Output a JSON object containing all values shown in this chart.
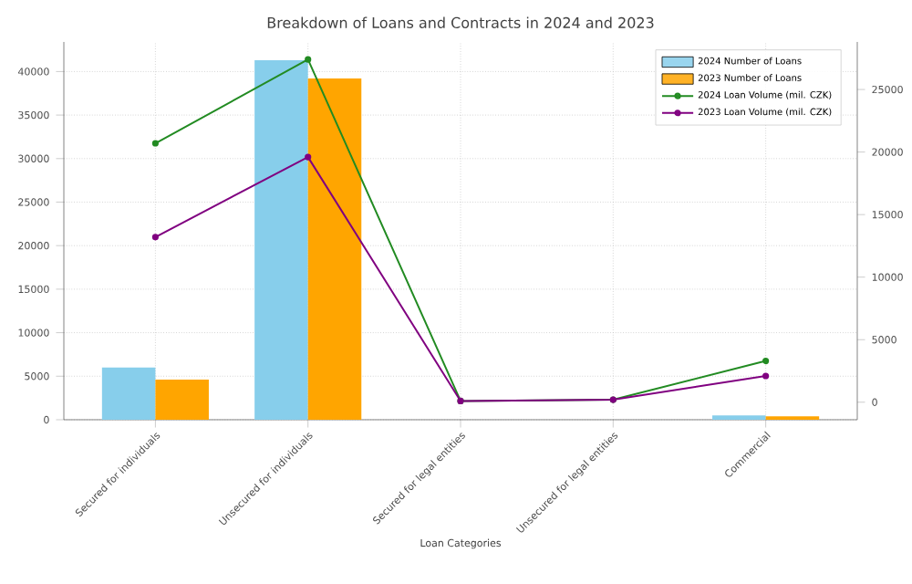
{
  "chart_data": {
    "type": "bar",
    "title": "Breakdown of Loans and Contracts in 2024 and 2023",
    "xlabel": "Loan Categories",
    "categories": [
      "Secured for individuals",
      "Unsecured for individuals",
      "Secured for legal entities",
      "Unsecured for legal entities",
      "Commercial"
    ],
    "series": [
      {
        "name": "2024 Number of Loans",
        "axis": "y",
        "color": "#87ceeb",
        "values": [
          6000,
          41300,
          null,
          null,
          500
        ]
      },
      {
        "name": "2023 Number of Loans",
        "axis": "y",
        "color": "#ffa500",
        "values": [
          4600,
          39200,
          null,
          null,
          400
        ]
      },
      {
        "name": "2024 Loan Volume (mil. CZK)",
        "type": "line",
        "axis": "y2",
        "color": "#228b22",
        "values": [
          20700,
          27400,
          100,
          200,
          3300
        ]
      },
      {
        "name": "2023 Loan Volume (mil. CZK)",
        "type": "line",
        "axis": "y2",
        "color": "#800080",
        "values": [
          13200,
          19600,
          100,
          200,
          2100
        ]
      }
    ],
    "ylim": [
      0,
      43400
    ],
    "yticks": [
      0,
      5000,
      10000,
      15000,
      20000,
      25000,
      30000,
      35000,
      40000
    ],
    "y2lim": [
      -1400,
      28800
    ],
    "y2ticks": [
      0,
      5000,
      10000,
      15000,
      20000,
      25000
    ],
    "grid": true,
    "legend": "top right",
    "marker": "circle"
  }
}
